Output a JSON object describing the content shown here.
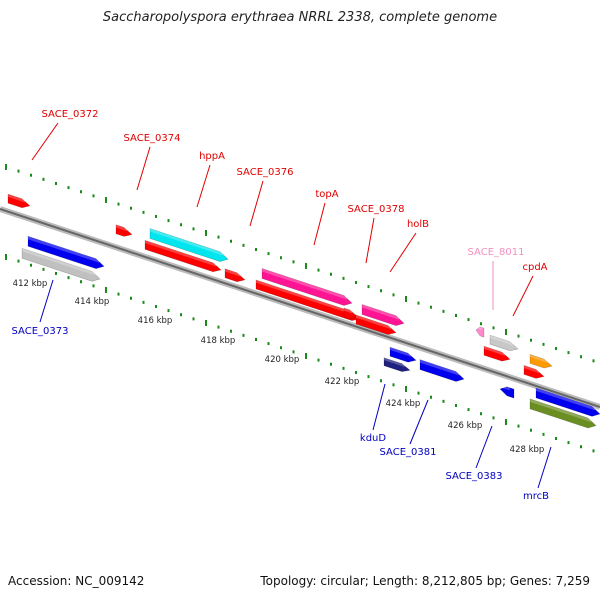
{
  "title": "Saccharopolyspora erythraea NRRL 2338, complete genome",
  "footer": {
    "accession": "Accession: NC_009142",
    "summary": "Topology: circular; Length: 8,212,805 bp; Genes: 7,259"
  },
  "colors": {
    "top_strand_label": "#e00000",
    "bottom_strand_label": "#0000c0",
    "faded_label": "#f090c0",
    "tick": "#1a8a1a",
    "backbone": "#888888"
  },
  "kbp_labels": [
    "412 kbp",
    "414 kbp",
    "416 kbp",
    "418 kbp",
    "420 kbp",
    "422 kbp",
    "424 kbp",
    "426 kbp",
    "428 kbp"
  ],
  "gene_labels_top": [
    "SACE_0372",
    "SACE_0374",
    "hppA",
    "SACE_0376",
    "topA",
    "SACE_0378",
    "holB",
    "SACE_8011",
    "cpdA"
  ],
  "gene_labels_bottom": [
    "SACE_0373",
    "kduD",
    "SACE_0381",
    "SACE_0383",
    "mrcB"
  ]
}
